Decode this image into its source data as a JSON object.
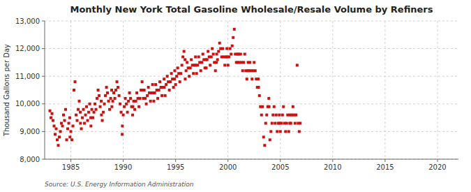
{
  "chart_data": {
    "type": "scatter",
    "title": "Monthly New York Total Gasoline Wholesale/Resale Volume by Refiners",
    "y_label": "Thousand Gallons per Day",
    "annotations": [
      "Source: U.S. Energy Information Administration"
    ],
    "color": "#cc1111",
    "marker": "square",
    "grid": true,
    "xlim": [
      1982.5,
      2022
    ],
    "ylim": [
      8000,
      13000
    ],
    "xticks": [
      1985,
      1990,
      1995,
      2000,
      2005,
      2010,
      2015,
      2020
    ],
    "yticks": [
      {
        "value": 8000,
        "label": "8,000"
      },
      {
        "value": 9000,
        "label": "9,000"
      },
      {
        "value": 10000,
        "label": "10,000"
      },
      {
        "value": 11000,
        "label": "11,000"
      },
      {
        "value": 12000,
        "label": "12,000"
      },
      {
        "value": 13000,
        "label": "13,000"
      }
    ],
    "x": [
      1983.0,
      1983.1,
      1983.2,
      1983.3,
      1983.4,
      1983.5,
      1983.6,
      1983.7,
      1983.8,
      1983.9,
      1984.0,
      1984.1,
      1984.2,
      1984.3,
      1984.4,
      1984.5,
      1984.6,
      1984.7,
      1984.8,
      1984.9,
      1984.92,
      1985.0,
      1985.1,
      1985.2,
      1985.3,
      1985.4,
      1985.5,
      1985.6,
      1985.7,
      1985.8,
      1985.9,
      1985.92,
      1986.0,
      1986.1,
      1986.2,
      1986.3,
      1986.4,
      1986.5,
      1986.6,
      1986.7,
      1986.8,
      1986.9,
      1986.92,
      1987.0,
      1987.1,
      1987.2,
      1987.3,
      1987.4,
      1987.5,
      1987.6,
      1987.7,
      1987.8,
      1987.9,
      1987.92,
      1988.0,
      1988.1,
      1988.2,
      1988.3,
      1988.4,
      1988.5,
      1988.6,
      1988.7,
      1988.8,
      1988.9,
      1988.92,
      1989.0,
      1989.1,
      1989.2,
      1989.3,
      1989.4,
      1989.5,
      1989.6,
      1989.7,
      1989.8,
      1989.9,
      1989.92,
      1990.0,
      1990.1,
      1990.2,
      1990.3,
      1990.4,
      1990.5,
      1990.6,
      1990.7,
      1990.8,
      1990.9,
      1990.92,
      1991.0,
      1991.1,
      1991.2,
      1991.3,
      1991.4,
      1991.5,
      1991.6,
      1991.7,
      1991.8,
      1991.9,
      1991.92,
      1992.0,
      1992.1,
      1992.2,
      1992.3,
      1992.4,
      1992.5,
      1992.6,
      1992.7,
      1992.8,
      1992.9,
      1992.92,
      1993.0,
      1993.1,
      1993.2,
      1993.3,
      1993.4,
      1993.5,
      1993.6,
      1993.7,
      1993.8,
      1993.9,
      1993.92,
      1994.0,
      1994.1,
      1994.2,
      1994.3,
      1994.4,
      1994.5,
      1994.6,
      1994.7,
      1994.8,
      1994.9,
      1994.92,
      1995.0,
      1995.1,
      1995.2,
      1995.3,
      1995.4,
      1995.5,
      1995.6,
      1995.7,
      1995.8,
      1995.9,
      1995.92,
      1996.0,
      1996.1,
      1996.2,
      1996.3,
      1996.4,
      1996.5,
      1996.6,
      1996.7,
      1996.8,
      1996.9,
      1996.92,
      1997.0,
      1997.1,
      1997.2,
      1997.3,
      1997.4,
      1997.5,
      1997.6,
      1997.7,
      1997.8,
      1997.9,
      1997.92,
      1998.0,
      1998.1,
      1998.2,
      1998.3,
      1998.4,
      1998.5,
      1998.6,
      1998.7,
      1998.8,
      1998.9,
      1998.92,
      1999.0,
      1999.1,
      1999.2,
      1999.3,
      1999.4,
      1999.5,
      1999.6,
      1999.7,
      1999.8,
      1999.9,
      1999.92,
      2000.0,
      2000.1,
      2000.2,
      2000.3,
      2000.4,
      2000.5,
      2000.6,
      2000.7,
      2000.8,
      2000.9,
      2000.92,
      2001.0,
      2001.1,
      2001.2,
      2001.3,
      2001.4,
      2001.5,
      2001.6,
      2001.7,
      2001.8,
      2001.9,
      2001.92,
      2002.0,
      2002.1,
      2002.2,
      2002.3,
      2002.4,
      2002.5,
      2002.6,
      2002.7,
      2002.8,
      2002.9,
      2002.92,
      2003.0,
      2003.1,
      2003.2,
      2003.3,
      2003.4,
      2003.5,
      2003.6,
      2003.7,
      2003.8,
      2003.9,
      2003.92,
      2004.0,
      2004.1,
      2004.2,
      2004.3,
      2004.4,
      2004.5,
      2004.6,
      2004.7,
      2004.8,
      2004.9,
      2004.92,
      2005.0,
      2005.1,
      2005.2,
      2005.3,
      2005.4,
      2005.5,
      2005.6,
      2005.7,
      2005.8,
      2005.9,
      2005.92,
      2006.0,
      2006.1,
      2006.2,
      2006.3,
      2006.4,
      2006.5,
      2006.6,
      2006.7,
      2006.8,
      2006.9
    ],
    "values": [
      9750,
      9500,
      9650,
      9400,
      9200,
      8900,
      9100,
      8700,
      8500,
      8800,
      9000,
      9300,
      9200,
      9600,
      9400,
      9800,
      8700,
      9100,
      9300,
      9500,
      8800,
      9000,
      8700,
      9200,
      10500,
      10800,
      9600,
      9400,
      9800,
      10100,
      9700,
      9300,
      9100,
      9500,
      9800,
      9300,
      9600,
      9900,
      9400,
      9700,
      10000,
      9500,
      9200,
      9800,
      9500,
      9700,
      10000,
      9800,
      10200,
      10500,
      10300,
      9900,
      10100,
      9600,
      9400,
      9700,
      10000,
      10300,
      10600,
      10400,
      10100,
      9800,
      10200,
      10500,
      9900,
      10100,
      10400,
      10200,
      10500,
      10800,
      10600,
      10300,
      10000,
      9700,
      8900,
      9200,
      9600,
      9900,
      10200,
      10000,
      9700,
      10100,
      10400,
      10200,
      9900,
      9600,
      9900,
      10100,
      9800,
      10100,
      10400,
      10200,
      9900,
      10200,
      10500,
      10800,
      10500,
      10200,
      10500,
      10200,
      10000,
      10300,
      10600,
      10400,
      10100,
      10400,
      10700,
      10400,
      10100,
      10400,
      10700,
      10500,
      10200,
      10500,
      10800,
      10600,
      10300,
      10600,
      10900,
      10600,
      10300,
      10700,
      11000,
      10800,
      10500,
      10800,
      11100,
      10900,
      10600,
      10900,
      11200,
      10700,
      11000,
      11300,
      11100,
      10800,
      11100,
      11400,
      11700,
      11900,
      11600,
      10900,
      11200,
      11500,
      11300,
      11000,
      11300,
      11600,
      11400,
      11100,
      11400,
      11700,
      11400,
      11100,
      11400,
      11700,
      11500,
      11200,
      11500,
      11800,
      11600,
      11300,
      11600,
      11300,
      11600,
      11900,
      11700,
      11400,
      11700,
      12000,
      11800,
      11500,
      11200,
      11500,
      11800,
      11600,
      11900,
      12200,
      12000,
      11700,
      12000,
      11700,
      11400,
      11700,
      12000,
      11700,
      11400,
      11700,
      12000,
      11800,
      12100,
      12400,
      12700,
      11800,
      11500,
      11800,
      11500,
      11800,
      11500,
      11800,
      11500,
      11200,
      11500,
      11800,
      11200,
      10900,
      11200,
      11500,
      11200,
      11500,
      11200,
      10900,
      11200,
      11500,
      11200,
      10900,
      10600,
      10900,
      10600,
      10300,
      9900,
      9600,
      9900,
      8800,
      8500,
      9300,
      9600,
      9900,
      10200,
      9900,
      8700,
      9000,
      9300,
      9600,
      9900,
      9300,
      9600,
      9000,
      9300,
      9600,
      9300,
      9000,
      9300,
      9600,
      9900,
      9300,
      9000,
      9300,
      9600,
      9000,
      9300,
      9600,
      9300,
      9600,
      9900,
      9600,
      9300,
      9600,
      11400,
      9300,
      9000,
      9300
    ]
  }
}
